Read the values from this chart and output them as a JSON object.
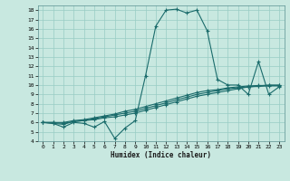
{
  "title": "",
  "xlabel": "Humidex (Indice chaleur)",
  "ylabel": "",
  "bg_color": "#c8e8e0",
  "grid_color": "#98ccc4",
  "line_color": "#1a6b6b",
  "xlim": [
    -0.5,
    23.5
  ],
  "ylim": [
    4,
    18.5
  ],
  "yticks": [
    4,
    5,
    6,
    7,
    8,
    9,
    10,
    11,
    12,
    13,
    14,
    15,
    16,
    17,
    18
  ],
  "xticks": [
    0,
    1,
    2,
    3,
    4,
    5,
    6,
    7,
    8,
    9,
    10,
    11,
    12,
    13,
    14,
    15,
    16,
    17,
    18,
    19,
    20,
    21,
    22,
    23
  ],
  "line1_x": [
    0,
    1,
    2,
    3,
    4,
    5,
    6,
    7,
    8,
    9,
    10,
    11,
    12,
    13,
    14,
    15,
    16,
    17,
    18,
    19,
    20,
    21,
    22,
    23
  ],
  "line1_y": [
    6.0,
    5.9,
    5.5,
    6.0,
    5.9,
    5.5,
    6.1,
    4.3,
    5.4,
    6.2,
    11.0,
    16.3,
    18.0,
    18.1,
    17.7,
    18.0,
    15.8,
    10.6,
    10.0,
    10.0,
    9.0,
    12.5,
    9.0,
    9.8
  ],
  "line2_x": [
    0,
    1,
    2,
    3,
    4,
    5,
    6,
    7,
    8,
    9,
    10,
    11,
    12,
    13,
    14,
    15,
    16,
    17,
    18,
    19,
    20,
    21,
    22,
    23
  ],
  "line2_y": [
    6.0,
    5.9,
    5.8,
    6.1,
    6.2,
    6.3,
    6.5,
    6.6,
    6.8,
    7.0,
    7.3,
    7.6,
    7.9,
    8.2,
    8.5,
    8.8,
    9.0,
    9.2,
    9.4,
    9.6,
    9.8,
    9.9,
    10.0,
    10.0
  ],
  "line3_x": [
    0,
    1,
    2,
    3,
    4,
    5,
    6,
    7,
    8,
    9,
    10,
    11,
    12,
    13,
    14,
    15,
    16,
    17,
    18,
    19,
    20,
    21,
    22,
    23
  ],
  "line3_y": [
    6.0,
    6.0,
    5.9,
    6.1,
    6.2,
    6.4,
    6.6,
    6.8,
    7.0,
    7.2,
    7.5,
    7.8,
    8.1,
    8.4,
    8.7,
    9.0,
    9.2,
    9.4,
    9.6,
    9.7,
    9.8,
    9.85,
    9.9,
    9.9
  ],
  "line4_x": [
    0,
    1,
    2,
    3,
    4,
    5,
    6,
    7,
    8,
    9,
    10,
    11,
    12,
    13,
    14,
    15,
    16,
    17,
    18,
    19,
    20,
    21,
    22,
    23
  ],
  "line4_y": [
    6.0,
    6.0,
    6.0,
    6.2,
    6.3,
    6.5,
    6.7,
    6.9,
    7.2,
    7.4,
    7.7,
    8.0,
    8.3,
    8.6,
    8.9,
    9.2,
    9.4,
    9.5,
    9.7,
    9.8,
    9.9,
    9.95,
    9.95,
    9.95
  ]
}
